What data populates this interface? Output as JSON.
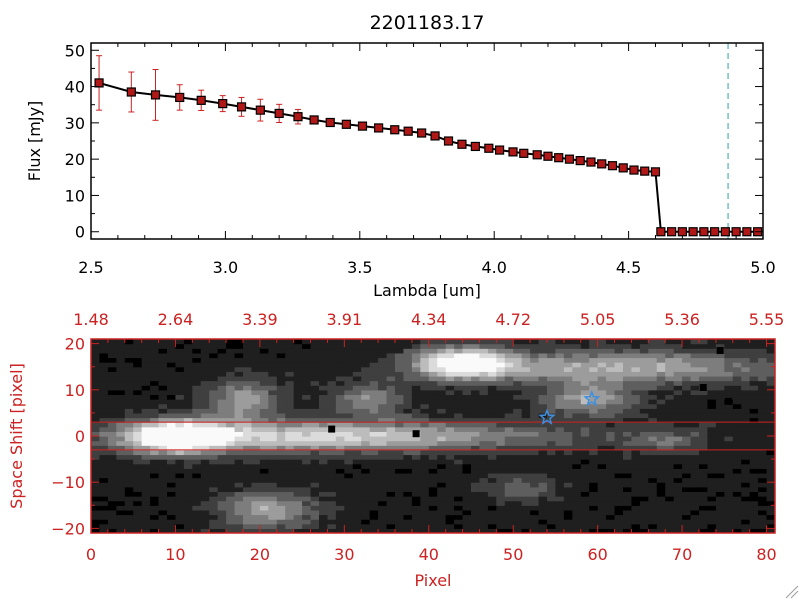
{
  "chart_data": [
    {
      "type": "line",
      "title": "2201183.17",
      "xlabel": "Lambda [um]",
      "ylabel": "Flux [mJy]",
      "xlim": [
        2.5,
        5.0
      ],
      "ylim": [
        -2,
        52
      ],
      "xticks": [
        "2.5",
        "3.0",
        "3.5",
        "4.0",
        "4.5",
        "5.0"
      ],
      "xtick_values": [
        2.5,
        3.0,
        3.5,
        4.0,
        4.5,
        5.0
      ],
      "yticks": [
        "0",
        "10",
        "20",
        "30",
        "40",
        "50"
      ],
      "ytick_values": [
        0,
        10,
        20,
        30,
        40,
        50
      ],
      "reference_line_x": 4.87,
      "line_color": "#000000",
      "marker_color": "#b01818",
      "errorbar_color": "#cc2222",
      "reference_line_color": "#2aa3a3",
      "series": [
        {
          "x": [
            2.53,
            2.65,
            2.74,
            2.83,
            2.91,
            2.99,
            3.06,
            3.13,
            3.2,
            3.27,
            3.33,
            3.39,
            3.45,
            3.51,
            3.57,
            3.63,
            3.68,
            3.73,
            3.78,
            3.83,
            3.88,
            3.93,
            3.98,
            4.02,
            4.07,
            4.11,
            4.16,
            4.2,
            4.24,
            4.28,
            4.32,
            4.36,
            4.4,
            4.44,
            4.48,
            4.52,
            4.56,
            4.6,
            4.62,
            4.66,
            4.7,
            4.74,
            4.78,
            4.82,
            4.86,
            4.9,
            4.94,
            4.98
          ],
          "y": [
            41.0,
            38.5,
            37.7,
            37.0,
            36.2,
            35.3,
            34.4,
            33.5,
            32.6,
            31.7,
            30.8,
            30.1,
            29.6,
            29.1,
            28.6,
            28.1,
            27.7,
            27.2,
            26.4,
            25.0,
            24.1,
            23.5,
            23.0,
            22.5,
            22.0,
            21.6,
            21.2,
            20.8,
            20.4,
            20.0,
            19.6,
            19.2,
            18.7,
            18.2,
            17.6,
            17.0,
            16.7,
            16.5,
            0,
            0,
            0,
            0,
            0,
            0,
            0,
            0,
            0,
            0
          ],
          "yerr": [
            7.5,
            5.5,
            7.0,
            3.5,
            2.8,
            2.2,
            2.6,
            3.0,
            2.5,
            2.0,
            0,
            0,
            0,
            0,
            0,
            0,
            0,
            0,
            0,
            0,
            0,
            0,
            0,
            0,
            0,
            0,
            0,
            0,
            0,
            0,
            0,
            0,
            0,
            0,
            0,
            0,
            0,
            0,
            0,
            0,
            0,
            0,
            0,
            0,
            0,
            0,
            0,
            0
          ]
        }
      ]
    },
    {
      "type": "heatmap",
      "xlabel": "Pixel",
      "ylabel": "Space Shift [pixel]",
      "xlim": [
        0,
        81
      ],
      "ylim": [
        -21,
        21
      ],
      "xticks": [
        "0",
        "10",
        "20",
        "30",
        "40",
        "50",
        "60",
        "70",
        "80"
      ],
      "xtick_values": [
        0,
        10,
        20,
        30,
        40,
        50,
        60,
        70,
        80
      ],
      "yticks": [
        "−20",
        "−10",
        "0",
        "10",
        "20"
      ],
      "ytick_values": [
        -20,
        -10,
        0,
        10,
        20
      ],
      "top_axis_labels": [
        "1.48",
        "2.64",
        "3.39",
        "3.91",
        "4.34",
        "4.72",
        "5.05",
        "5.36",
        "5.55"
      ],
      "extraction_window": [
        -3,
        3
      ],
      "frame_color": "#cc2222",
      "star_color": "#3d8fe0",
      "markers": [
        {
          "name": "star",
          "x": 54,
          "y": 4
        },
        {
          "name": "star",
          "x": 59.3,
          "y": 8
        }
      ],
      "sources": [
        {
          "x": 10,
          "y": 0,
          "sx": 4,
          "sy": 2.5,
          "amp": 1.0
        },
        {
          "x": 22,
          "y": 0,
          "sx": 14,
          "sy": 2.5,
          "amp": 0.55
        },
        {
          "x": 40,
          "y": 0,
          "sx": 16,
          "sy": 2.2,
          "amp": 0.35
        },
        {
          "x": 44,
          "y": 16,
          "sx": 4,
          "sy": 2.5,
          "amp": 0.9
        },
        {
          "x": 62,
          "y": 15,
          "sx": 14,
          "sy": 2.5,
          "amp": 0.6
        },
        {
          "x": 18,
          "y": 8,
          "sx": 3,
          "sy": 3,
          "amp": 0.55
        },
        {
          "x": 33,
          "y": 8,
          "sx": 3,
          "sy": 2.5,
          "amp": 0.45
        },
        {
          "x": 59,
          "y": 8,
          "sx": 4,
          "sy": 2.5,
          "amp": 0.55
        },
        {
          "x": 21,
          "y": -16,
          "sx": 4,
          "sy": 3,
          "amp": 0.55
        },
        {
          "x": 51,
          "y": -11,
          "sx": 3,
          "sy": 2,
          "amp": 0.3
        },
        {
          "x": 68,
          "y": -1,
          "sx": 3,
          "sy": 2,
          "amp": 0.3
        }
      ],
      "dead_pixels": [
        {
          "x": 28.5,
          "y": 1.5
        },
        {
          "x": 38.5,
          "y": 0.5
        },
        {
          "x": 74.5,
          "y": 18.5
        },
        {
          "x": 72.5,
          "y": 10.5
        },
        {
          "x": 75.5,
          "y": 7.5
        }
      ]
    }
  ]
}
